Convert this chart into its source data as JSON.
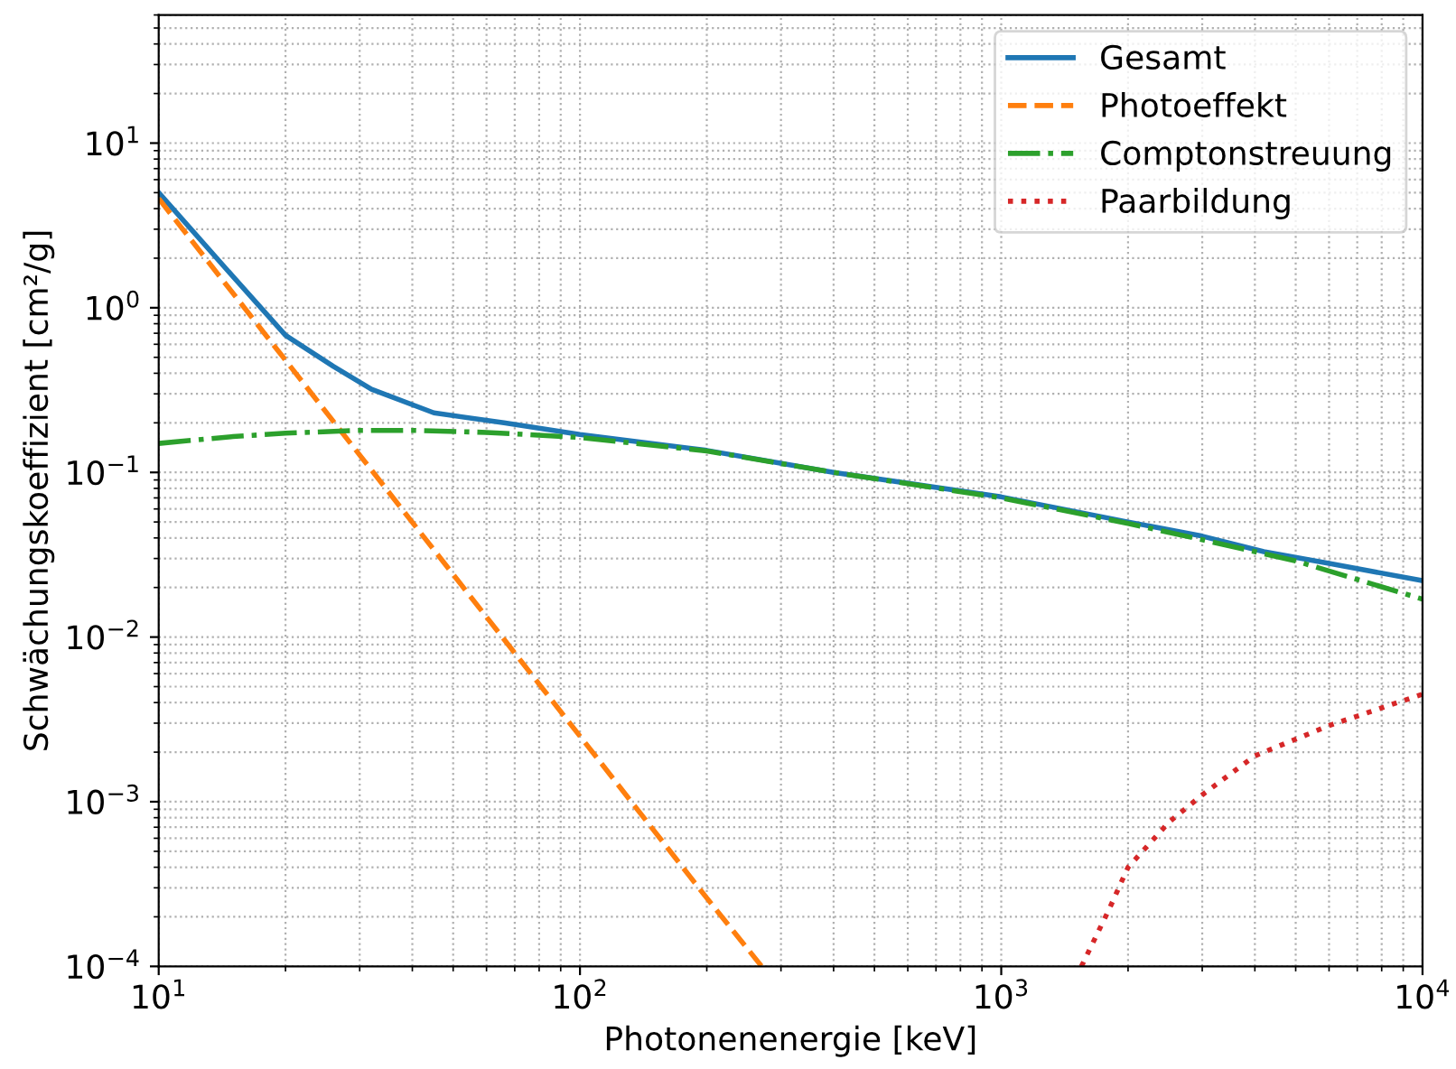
{
  "chart_data": {
    "type": "line",
    "xlabel": "Photonenenergie [keV]",
    "ylabel": "Schwächungskoeffizient [cm²/g]",
    "log": "xy",
    "grid": true,
    "legend": "top right",
    "xlim": [
      10,
      10000
    ],
    "ylim": [
      0.0001,
      60
    ],
    "xticks": [
      {
        "value": 10,
        "label": "10$^{1}$"
      },
      {
        "value": 100,
        "label": "10$^{2}$"
      },
      {
        "value": 1000,
        "label": "10$^{3}$"
      },
      {
        "value": 10000,
        "label": "10$^{4}$"
      }
    ],
    "yticks": [
      {
        "value": 0.0001,
        "label": "10$^{−4}$"
      },
      {
        "value": 0.001,
        "label": "10$^{−3}$"
      },
      {
        "value": 0.01,
        "label": "10$^{−2}$"
      },
      {
        "value": 0.1,
        "label": "10$^{−1}$"
      },
      {
        "value": 1,
        "label": "10$^{0}$"
      },
      {
        "value": 10,
        "label": "10$^{1}$"
      }
    ],
    "series": [
      {
        "name": "Gesamt",
        "color": "#1f77b4",
        "line_style": "solid",
        "x": [
          10,
          15,
          20,
          26,
          32,
          45,
          66,
          100,
          200,
          400,
          1000,
          2000,
          3000,
          4200,
          6000,
          10000
        ],
        "values": [
          5.0,
          1.55,
          0.68,
          0.44,
          0.32,
          0.23,
          0.2,
          0.17,
          0.136,
          0.1,
          0.071,
          0.05,
          0.041,
          0.033,
          0.028,
          0.022
        ]
      },
      {
        "name": "Photoeffekt",
        "color": "#ff7f0e",
        "line_style": "dashed",
        "x": [
          10,
          20,
          50,
          100,
          200,
          270
        ],
        "values": [
          4.6,
          0.48,
          0.024,
          0.0025,
          0.00026,
          0.0001
        ]
      },
      {
        "name": "Comptonstreuung",
        "color": "#2ca02c",
        "line_style": "dashdot",
        "x": [
          10,
          15,
          20,
          30,
          40,
          60,
          100,
          200,
          400,
          1000,
          2000,
          3000,
          5000,
          10000
        ],
        "values": [
          0.15,
          0.165,
          0.173,
          0.18,
          0.18,
          0.175,
          0.163,
          0.135,
          0.1,
          0.07,
          0.049,
          0.039,
          0.029,
          0.017
        ]
      },
      {
        "name": "Paarbildung",
        "color": "#d62728",
        "line_style": "dotted",
        "x": [
          1550,
          1800,
          2000,
          2500,
          3000,
          4000,
          6000,
          10000
        ],
        "values": [
          0.0001,
          0.00022,
          0.0004,
          0.00075,
          0.0011,
          0.0019,
          0.0029,
          0.0045
        ]
      }
    ]
  }
}
